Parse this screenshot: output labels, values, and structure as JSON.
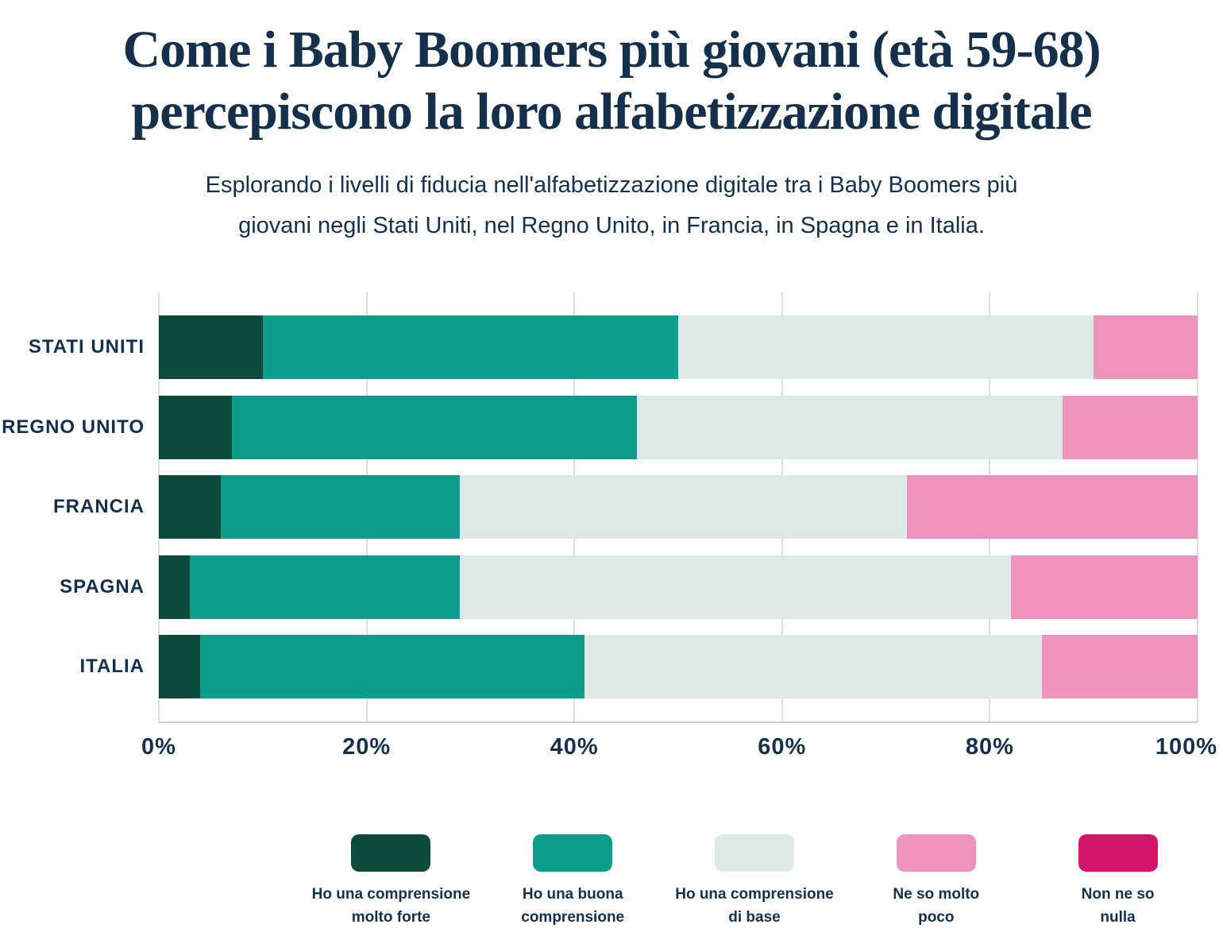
{
  "page": {
    "title": "Come i Baby Boomers più giovani (età 59-68)\npercepiscono la loro alfabetizzazione digitale",
    "subtitle": "Esplorando i livelli di fiducia nell'alfabetizzazione digitale tra i Baby Boomers più\ngiovani negli Stati Uniti, nel Regno Unito, in Francia, in Spagna e in Italia.",
    "background_color": "#ffffff",
    "text_color": "#14304a"
  },
  "chart_data": {
    "type": "bar",
    "orientation": "horizontal",
    "stacked": true,
    "unit": "%",
    "categories": [
      "STATI UNITI",
      "REGNO UNITO",
      "FRANCIA",
      "SPAGNA",
      "ITALIA"
    ],
    "series": [
      {
        "name": "Ho una comprensione molto forte",
        "legend_label": "Ho una comprensione\nmolto forte",
        "color": "#0d4a3c",
        "value_label_color": "#ffffff",
        "values": [
          10,
          7,
          6,
          3,
          4
        ]
      },
      {
        "name": "Ho una buona comprensione",
        "legend_label": "Ho una buona\ncomprensione",
        "color": "#0e9c8d",
        "value_label_color": "#ffffff",
        "values": [
          40,
          39,
          23,
          26,
          37
        ]
      },
      {
        "name": "Ho una comprensione di base",
        "legend_label": "Ho una comprensione\ndi base",
        "color": "#dde9e6",
        "value_label_color": "#14304a",
        "values": [
          40,
          41,
          43,
          53,
          44
        ]
      },
      {
        "name": "Ne so molto poco",
        "legend_label": "Ne so molto\npoco",
        "color": "#ee93bb",
        "value_label_color": "#14304a",
        "values": [
          10,
          13,
          28,
          18,
          15
        ]
      },
      {
        "name": "Non ne so nulla",
        "legend_label": "Non ne so\nnulla",
        "color": "#d3156b",
        "value_label_color": "#ffffff",
        "values": [
          0,
          0,
          0,
          0,
          0
        ]
      }
    ],
    "xlim": [
      0,
      100
    ],
    "xticks": [
      0,
      20,
      40,
      60,
      80,
      100
    ],
    "tick_suffix": "%",
    "value_suffix": "%",
    "min_value_for_label": 5,
    "gridline_color": "#d6dfdb",
    "axis_line_color": "#c9d3ce",
    "legend_position": "bottom"
  }
}
